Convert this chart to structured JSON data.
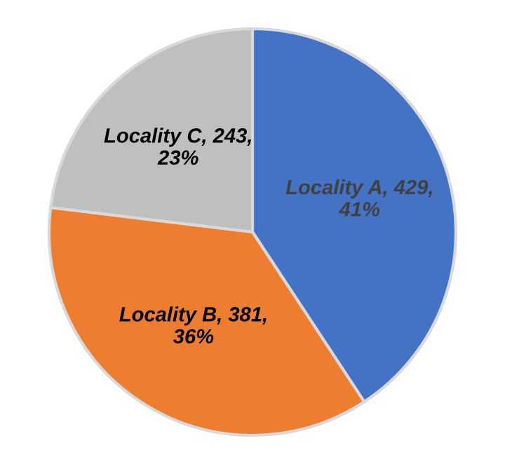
{
  "chart_data": {
    "type": "pie",
    "categories": [
      "Locality A",
      "Locality B",
      "Locality C"
    ],
    "values": [
      429,
      381,
      243
    ],
    "value_labels": [
      "429, 41%",
      "381, 36%",
      "243, 23%"
    ],
    "colors": [
      "#4472c4",
      "#ed7d31",
      "#bfbfbf"
    ],
    "legend": false
  }
}
